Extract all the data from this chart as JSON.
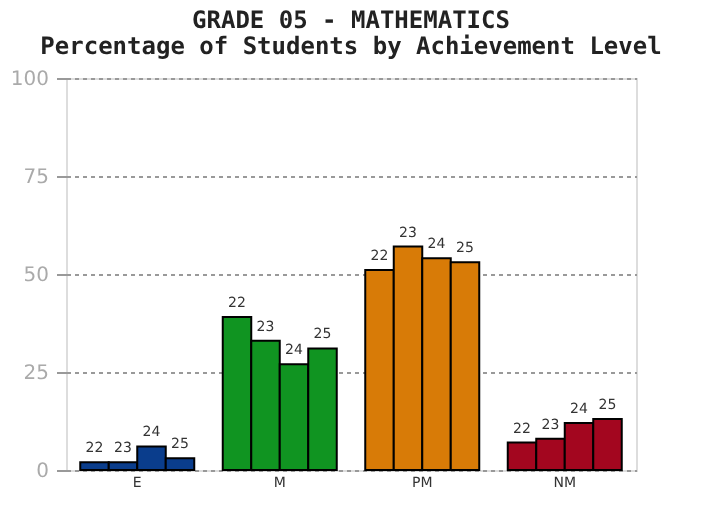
{
  "chart_data": {
    "type": "bar",
    "title": "GRADE 05 - MATHEMATICS",
    "subtitle": "Percentage of Students by Achievement Level",
    "categories": [
      "E",
      "M",
      "PM",
      "NM"
    ],
    "series": [
      {
        "name": "22",
        "colors": [
          "#0a3d8c",
          "#109421",
          "#d87b07",
          "#a3061f"
        ],
        "values": [
          2,
          39,
          51,
          7
        ]
      },
      {
        "name": "23",
        "colors": [
          "#0a3d8c",
          "#109421",
          "#d87b07",
          "#a3061f"
        ],
        "values": [
          2,
          33,
          57,
          8
        ]
      },
      {
        "name": "24",
        "colors": [
          "#0a3d8c",
          "#109421",
          "#d87b07",
          "#a3061f"
        ],
        "values": [
          6,
          27,
          54,
          12
        ]
      },
      {
        "name": "25",
        "colors": [
          "#0a3d8c",
          "#109421",
          "#d87b07",
          "#a3061f"
        ],
        "values": [
          3,
          31,
          53,
          13
        ]
      }
    ],
    "ylim": [
      0,
      100
    ],
    "yticks": [
      0,
      25,
      50,
      75,
      100
    ],
    "grid": "y"
  }
}
